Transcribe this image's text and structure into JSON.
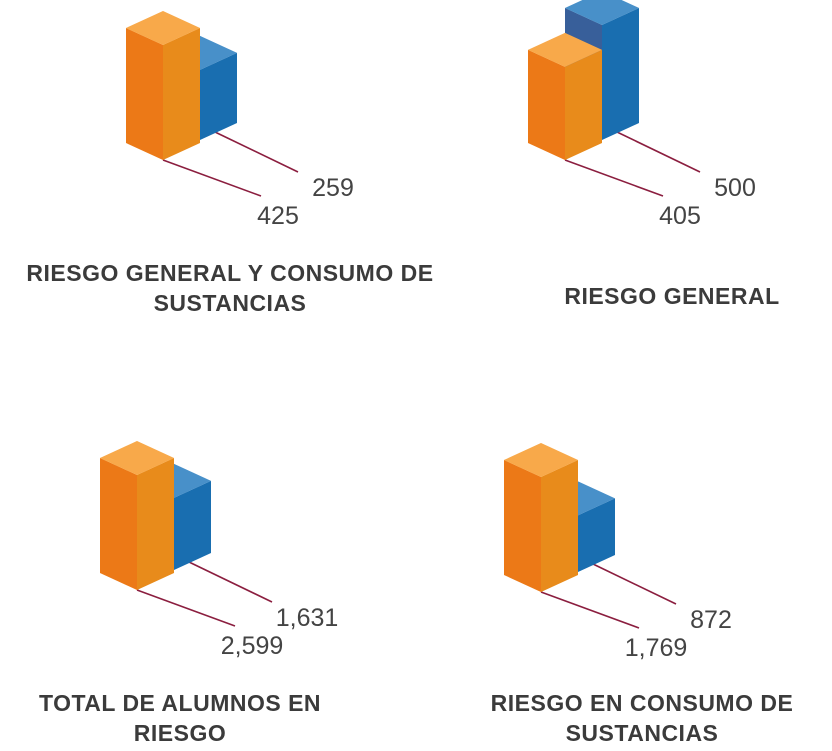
{
  "chart_data": [
    {
      "type": "bar3d",
      "title": "RIESGO GENERAL Y CONSUMO DE SUSTANCIAS",
      "values": [
        425,
        259
      ],
      "colors": [
        "#f7941d",
        "#1b75bc"
      ]
    },
    {
      "type": "bar3d",
      "title": "RIESGO GENERAL",
      "values": [
        405,
        500
      ],
      "colors": [
        "#f7941d",
        "#1b75bc"
      ]
    },
    {
      "type": "bar3d",
      "title": "TOTAL DE ALUMNOS EN RIESGO",
      "values": [
        2599,
        1631
      ],
      "value_labels": [
        "2,599",
        "1,631"
      ],
      "colors": [
        "#f7941d",
        "#1b75bc"
      ]
    },
    {
      "type": "bar3d",
      "title": "RIESGO EN CONSUMO DE SUSTANCIAS",
      "values": [
        1769,
        872
      ],
      "value_labels": [
        "1,769",
        "872"
      ],
      "colors": [
        "#f7941d",
        "#1b75bc"
      ]
    }
  ]
}
